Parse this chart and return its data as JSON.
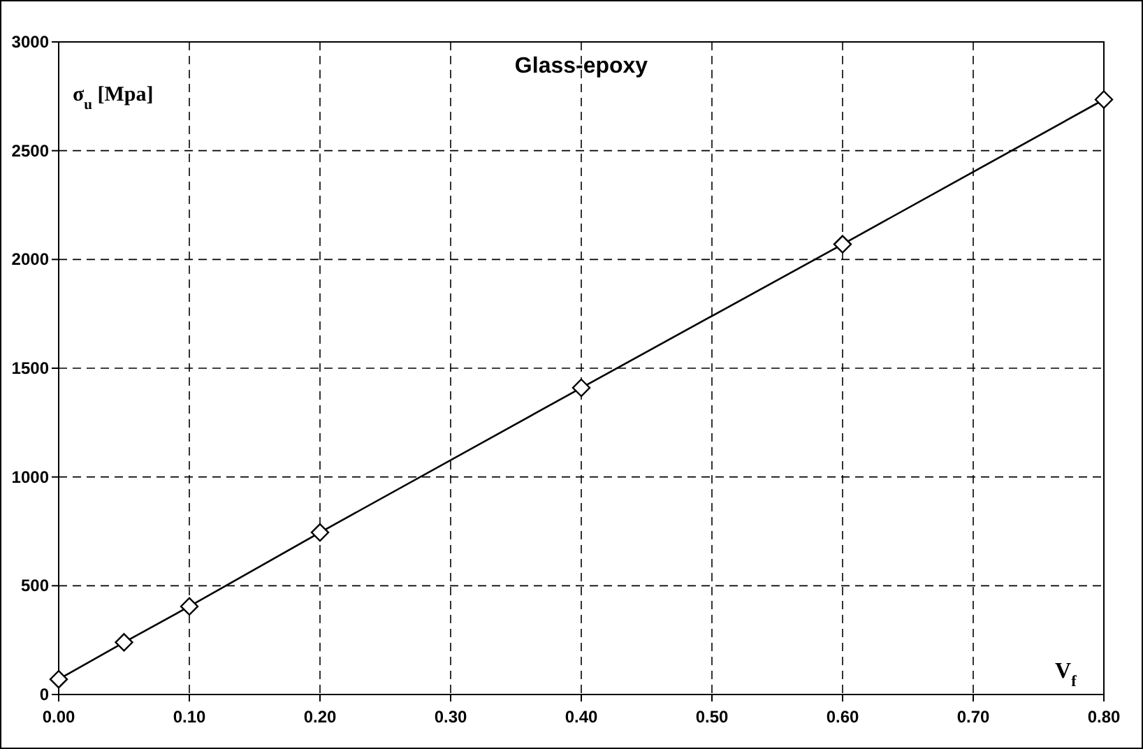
{
  "chart_data": {
    "type": "line",
    "title": "Glass-epoxy",
    "xlabel": "V$_{f}$",
    "ylabel": "σ$_{u}$ [Mpa]",
    "series": [
      {
        "color": "#000000",
        "x": [
          0,
          0.05,
          0.1,
          0.2,
          0.4,
          0.6,
          0.8
        ],
        "values": [
          70,
          240,
          405,
          745,
          1410,
          2070,
          2735
        ]
      }
    ],
    "xlim": [
      0,
      0.8
    ],
    "xticks": [
      {
        "value": 0,
        "label": "0.00"
      },
      {
        "value": 0.1,
        "label": "0.10"
      },
      {
        "value": 0.2,
        "label": "0.20"
      },
      {
        "value": 0.3,
        "label": "0.30"
      },
      {
        "value": 0.4,
        "label": "0.40"
      },
      {
        "value": 0.5,
        "label": "0.50"
      },
      {
        "value": 0.6,
        "label": "0.60"
      },
      {
        "value": 0.7,
        "label": "0.70"
      },
      {
        "value": 0.8,
        "label": "0.80"
      }
    ],
    "ylim": [
      0,
      3000
    ],
    "yticks": [
      0,
      500,
      1000,
      1500,
      2000,
      2500,
      3000
    ],
    "grid": true,
    "marker": "diamond",
    "line_style": "solid"
  }
}
